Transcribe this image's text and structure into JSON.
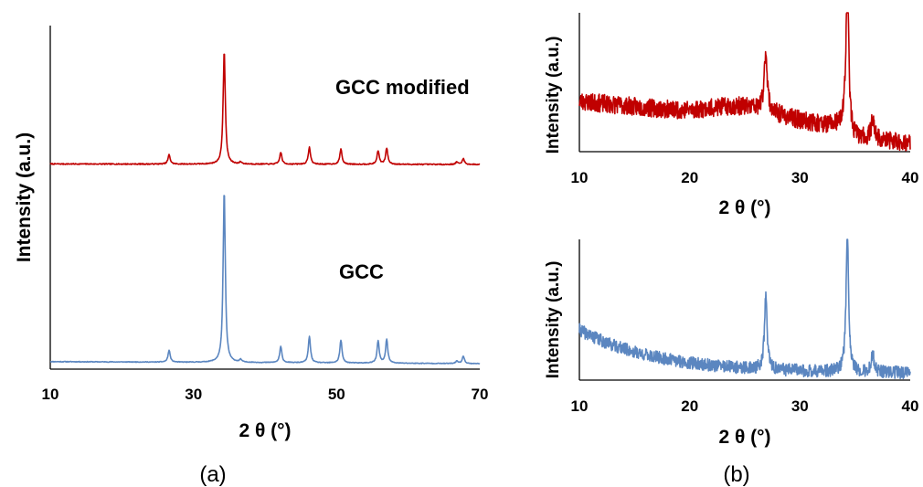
{
  "colors": {
    "modified": "#c00000",
    "gcc": "#5b86c0"
  },
  "captions": [
    "(a)",
    "(b)"
  ],
  "chart_data": [
    {
      "id": "a",
      "type": "line",
      "xlabel": "2 θ (°)",
      "ylabel": "Intensity (a.u.)",
      "xlim": [
        10,
        70
      ],
      "xticks": [
        10,
        30,
        50,
        70
      ],
      "grid": false,
      "annotations": [
        "GCC modified",
        "GCC"
      ],
      "series": [
        {
          "key": "modified",
          "color": "#c00000",
          "baseline": 1.1,
          "noise": 0.03,
          "peaks": [
            {
              "x": 26.6,
              "h": 0.55
            },
            {
              "x": 34.3,
              "h": 6.7
            },
            {
              "x": 36.6,
              "h": 0.12
            },
            {
              "x": 42.2,
              "h": 0.7
            },
            {
              "x": 46.2,
              "h": 1.0
            },
            {
              "x": 50.6,
              "h": 0.9
            },
            {
              "x": 55.8,
              "h": 0.8
            },
            {
              "x": 57.0,
              "h": 0.95
            },
            {
              "x": 66.8,
              "h": 0.15
            },
            {
              "x": 67.7,
              "h": 0.35
            }
          ]
        },
        {
          "key": "gcc",
          "color": "#5b86c0",
          "baseline": 0.2,
          "noise": 0.02,
          "peaks": [
            {
              "x": 26.6,
              "h": 0.7
            },
            {
              "x": 34.3,
              "h": 10.2
            },
            {
              "x": 36.6,
              "h": 0.15
            },
            {
              "x": 42.2,
              "h": 0.95
            },
            {
              "x": 46.2,
              "h": 1.55
            },
            {
              "x": 50.6,
              "h": 1.35
            },
            {
              "x": 55.8,
              "h": 1.3
            },
            {
              "x": 57.0,
              "h": 1.4
            },
            {
              "x": 66.8,
              "h": 0.15
            },
            {
              "x": 67.7,
              "h": 0.45
            }
          ]
        }
      ]
    },
    {
      "id": "b-top",
      "type": "line",
      "xlabel": "2 θ (°)",
      "ylabel": "Intensity (a.u.)",
      "xlim": [
        10,
        40
      ],
      "xticks": [
        10,
        20,
        30,
        40
      ],
      "grid": false,
      "series": [
        {
          "key": "modified",
          "color": "#c00000",
          "noise": 0.025,
          "peaks": [
            {
              "x": 26.9,
              "h": 0.7
            },
            {
              "x": 34.3,
              "h": 1.6
            },
            {
              "x": 36.6,
              "h": 0.25
            }
          ]
        }
      ]
    },
    {
      "id": "b-bottom",
      "type": "line",
      "xlabel": "2 θ (°)",
      "ylabel": "Intensity (a.u.)",
      "xlim": [
        10,
        40
      ],
      "xticks": [
        10,
        20,
        30,
        40
      ],
      "grid": false,
      "series": [
        {
          "key": "gcc",
          "color": "#5b86c0",
          "noise": 0.02,
          "peaks": [
            {
              "x": 26.9,
              "h": 0.85
            },
            {
              "x": 34.3,
              "h": 1.6
            },
            {
              "x": 36.6,
              "h": 0.22
            }
          ]
        }
      ]
    }
  ]
}
